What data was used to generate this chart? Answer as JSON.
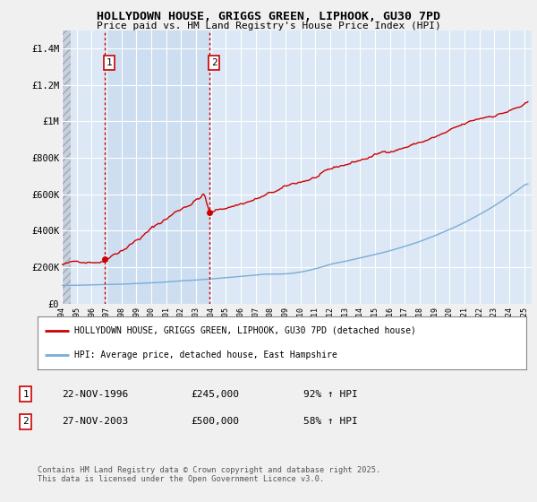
{
  "title": "HOLLYDOWN HOUSE, GRIGGS GREEN, LIPHOOK, GU30 7PD",
  "subtitle": "Price paid vs. HM Land Registry's House Price Index (HPI)",
  "ylim": [
    0,
    1500000
  ],
  "yticks": [
    0,
    200000,
    400000,
    600000,
    800000,
    1000000,
    1200000,
    1400000
  ],
  "ytick_labels": [
    "£0",
    "£200K",
    "£400K",
    "£600K",
    "£800K",
    "£1M",
    "£1.2M",
    "£1.4M"
  ],
  "xmin": 1994.0,
  "xmax": 2025.5,
  "background_color": "#f0f0f0",
  "plot_bg_color": "#dce8f5",
  "grid_color": "#ffffff",
  "red_line_color": "#cc0000",
  "blue_line_color": "#7aadd4",
  "transaction1_x": 1996.89,
  "transaction1_y": 245000,
  "transaction2_x": 2003.91,
  "transaction2_y": 500000,
  "legend_red_label": "HOLLYDOWN HOUSE, GRIGGS GREEN, LIPHOOK, GU30 7PD (detached house)",
  "legend_blue_label": "HPI: Average price, detached house, East Hampshire",
  "table_rows": [
    {
      "num": "1",
      "date": "22-NOV-1996",
      "price": "£245,000",
      "hpi": "92% ↑ HPI"
    },
    {
      "num": "2",
      "date": "27-NOV-2003",
      "price": "£500,000",
      "hpi": "58% ↑ HPI"
    }
  ],
  "footnote": "Contains HM Land Registry data © Crown copyright and database right 2025.\nThis data is licensed under the Open Government Licence v3.0."
}
